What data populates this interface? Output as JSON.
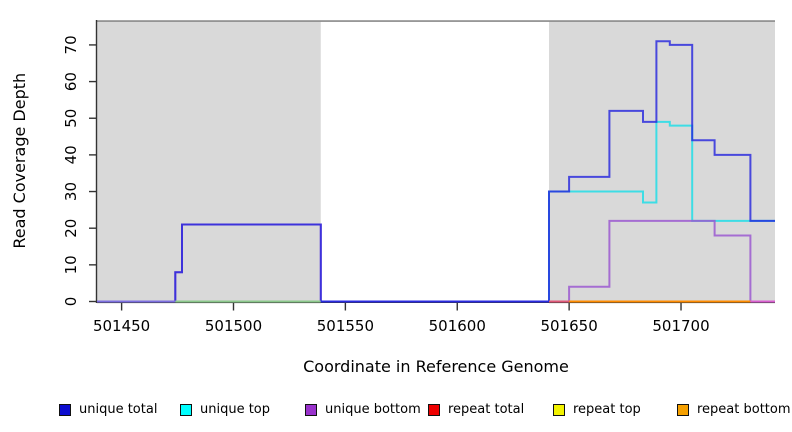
{
  "chart_data": {
    "type": "line",
    "step": true,
    "title": "",
    "xlabel": "Coordinate in Reference Genome",
    "ylabel": "Read Coverage Depth",
    "xlim": [
      501439,
      501742
    ],
    "ylim": [
      0,
      76.8
    ],
    "x_ticks": [
      501450,
      501500,
      501550,
      501600,
      501650,
      501700
    ],
    "y_ticks": [
      0,
      10,
      20,
      30,
      40,
      50,
      60,
      70
    ],
    "grid": false,
    "legend_position": "bottom",
    "shaded_regions": [
      {
        "x1": 501439,
        "x2": 501539,
        "fill": "#d9d9d9"
      },
      {
        "x1": 501641,
        "x2": 501742,
        "fill": "#d9d9d9"
      }
    ],
    "top_rule": {
      "value": 76.5,
      "color": "#8a8a8a"
    },
    "series": [
      {
        "name": "unique top",
        "color": "#35dde6",
        "opacity": 0.95,
        "draw": true,
        "points": [
          [
            501439,
            0
          ],
          [
            501641,
            30
          ],
          [
            501683,
            27
          ],
          [
            501689,
            49
          ],
          [
            501695,
            48
          ],
          [
            501705,
            22
          ]
        ]
      },
      {
        "name": "unique bottom",
        "color": "#9b59d0",
        "opacity": 0.85,
        "draw": true,
        "points": [
          [
            501439,
            0
          ],
          [
            501474,
            8
          ],
          [
            501477,
            21
          ],
          [
            501539,
            0
          ],
          [
            501650,
            4
          ],
          [
            501668,
            22
          ],
          [
            501715,
            18
          ],
          [
            501731,
            0
          ]
        ]
      },
      {
        "name": "unique total",
        "color": "#2323dd",
        "opacity": 0.8,
        "draw": true,
        "points": [
          [
            501439,
            0
          ],
          [
            501474,
            8
          ],
          [
            501477,
            21
          ],
          [
            501539,
            0
          ],
          [
            501641,
            30
          ],
          [
            501650,
            34
          ],
          [
            501668,
            52
          ],
          [
            501683,
            49
          ],
          [
            501689,
            71
          ],
          [
            501695,
            70
          ],
          [
            501705,
            44
          ],
          [
            501715,
            40
          ],
          [
            501731,
            22
          ]
        ]
      },
      {
        "name": "repeat total",
        "color": "#ee0000",
        "opacity": 1,
        "draw": false,
        "points": [
          [
            501439,
            0
          ]
        ]
      },
      {
        "name": "repeat top",
        "color": "#f2f200",
        "opacity": 1,
        "draw": false,
        "points": [
          [
            501439,
            0
          ]
        ]
      },
      {
        "name": "repeat bottom",
        "color": "#f5a000",
        "opacity": 1,
        "draw": false,
        "points": [
          [
            501439,
            0
          ]
        ]
      }
    ],
    "baseline_segments": [
      {
        "x1": 501439,
        "x2": 501474,
        "color": "#7d6fe0"
      },
      {
        "x1": 501474,
        "x2": 501539,
        "color": "#8cc88c"
      },
      {
        "x1": 501539,
        "x2": 501641,
        "color": "#2a2ae0"
      },
      {
        "x1": 501641,
        "x2": 501650,
        "color": "#e05878"
      },
      {
        "x1": 501650,
        "x2": 501731,
        "color": "#ff8c00"
      },
      {
        "x1": 501731,
        "x2": 501742,
        "color": "#d95fd0"
      }
    ]
  },
  "legend": {
    "entries": [
      {
        "label": "unique total",
        "fill": "#0d0dcf"
      },
      {
        "label": "unique top",
        "fill": "#00ffff"
      },
      {
        "label": "unique bottom",
        "fill": "#9932cc"
      },
      {
        "label": "repeat total",
        "fill": "#ee0000"
      },
      {
        "label": "repeat top",
        "fill": "#f2f200"
      },
      {
        "label": "repeat bottom",
        "fill": "#f5a000"
      }
    ]
  },
  "colors": {
    "shading": "#d9d9d9",
    "axis": "#333333",
    "background": "#ffffff"
  }
}
